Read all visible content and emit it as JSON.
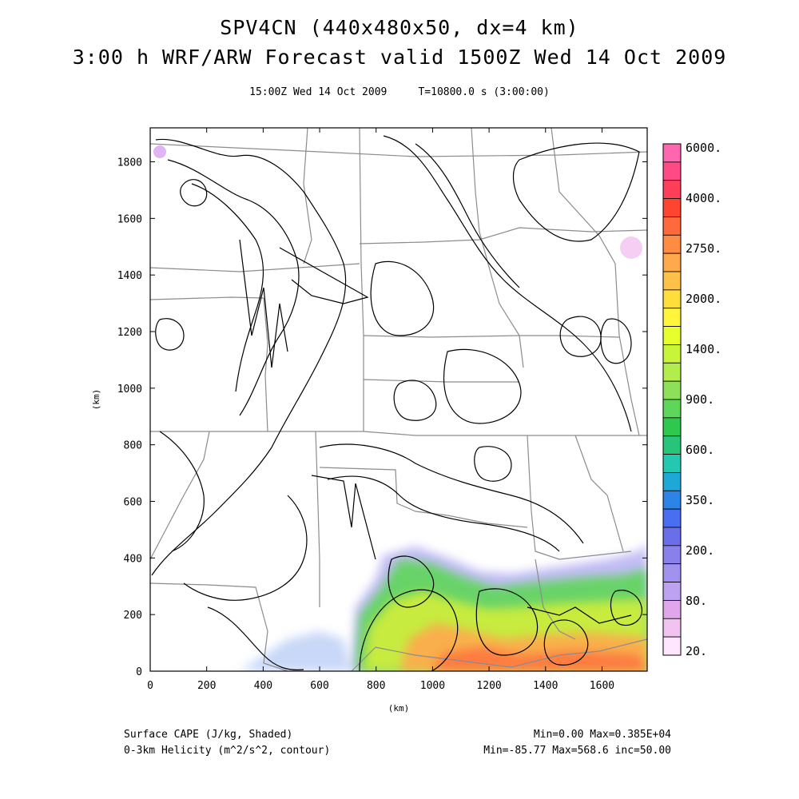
{
  "header": {
    "title_line1": "SPV4CN (440x480x50, dx=4 km)",
    "title_line2": "3:00 h WRF/ARW Forecast valid 1500Z Wed 14 Oct 2009",
    "subtitle": "15:00Z Wed 14 Oct 2009     T=10800.0 s (3:00:00)"
  },
  "chart_data": {
    "type": "heatmap",
    "x_range_km": [
      0,
      1760
    ],
    "y_range_km": [
      0,
      1920
    ],
    "x_ticks": [
      "0",
      "200",
      "400",
      "600",
      "800",
      "1000",
      "1200",
      "1400",
      "1600"
    ],
    "y_ticks": [
      "0",
      "200",
      "400",
      "600",
      "800",
      "1000",
      "1200",
      "1400",
      "1600",
      "1800"
    ],
    "xlabel": "(km)",
    "ylabel": "(km)",
    "shaded_field": "Surface CAPE (J/kg, Shaded)",
    "contour_field": "0-3km Helicity (m^2/s^2, contour)",
    "colorbar": {
      "labels": [
        "6000.",
        "4000.",
        "2750.",
        "2000.",
        "1400.",
        "900.",
        "600.",
        "350.",
        "200.",
        "80.",
        "20."
      ],
      "colors": [
        "#ff66b0",
        "#ff4a86",
        "#ff3f5a",
        "#ff4530",
        "#ff6a3d",
        "#ff8c42",
        "#ffa94d",
        "#ffc04a",
        "#ffdd3a",
        "#fff53a",
        "#e8ff2e",
        "#c8f53a",
        "#b2ec4d",
        "#8ee05a",
        "#5ed65a",
        "#2ec84f",
        "#28c47a",
        "#24c8b0",
        "#1ea8d8",
        "#2b84e6",
        "#4a6ef0",
        "#6a6ee8",
        "#8a80ec",
        "#a092ee",
        "#bca2f0",
        "#e0a6ec",
        "#f2c2f0",
        "#ffe6ff"
      ]
    }
  },
  "footer": {
    "left_line1": "Surface CAPE (J/kg, Shaded)",
    "left_line2": "0-3km Helicity (m^2/s^2, contour)",
    "right_line1": "Min=0.00 Max=0.385E+04",
    "right_line2": "Min=-85.77 Max=568.6 inc=50.00"
  }
}
